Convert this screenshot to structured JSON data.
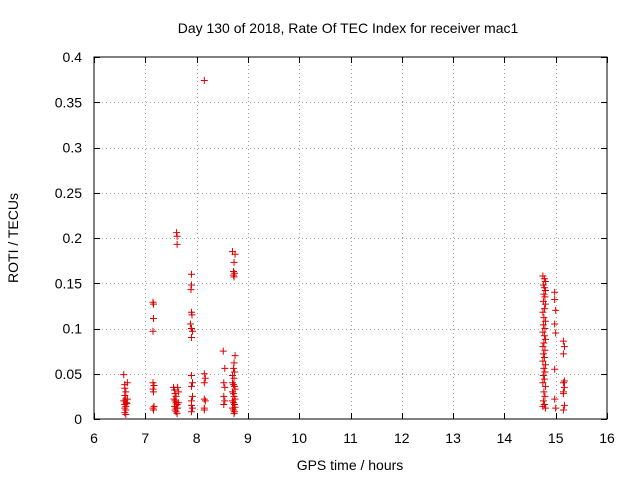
{
  "chart_data": {
    "type": "scatter",
    "title": "Day 130 of 2018, Rate Of TEC Index for receiver mac1",
    "xlabel": "GPS time / hours",
    "ylabel": "ROTI / TECUs",
    "xlim": [
      6,
      16
    ],
    "ylim": [
      0,
      0.4
    ],
    "x_ticks": [
      6,
      7,
      8,
      9,
      10,
      11,
      12,
      13,
      14,
      15,
      16
    ],
    "x_tick_labels": [
      "6",
      "7",
      "8",
      "9",
      "10",
      "11",
      "12",
      "13",
      "14",
      "15",
      "16"
    ],
    "y_ticks": [
      0,
      0.05,
      0.1,
      0.15,
      0.2,
      0.25,
      0.3,
      0.35,
      0.4
    ],
    "y_tick_labels": [
      "0",
      "0.05",
      "0.1",
      "0.15",
      "0.2",
      "0.25",
      "0.3",
      "0.35",
      "0.4"
    ],
    "grid": true,
    "marker": "+",
    "color": "#dd0000",
    "series": [
      {
        "name": "ROTI",
        "points": [
          [
            6.58,
            0.049
          ],
          [
            6.6,
            0.038
          ],
          [
            6.6,
            0.034
          ],
          [
            6.62,
            0.03
          ],
          [
            6.6,
            0.026
          ],
          [
            6.62,
            0.022
          ],
          [
            6.6,
            0.02
          ],
          [
            6.63,
            0.018
          ],
          [
            6.6,
            0.016
          ],
          [
            6.62,
            0.014
          ],
          [
            6.6,
            0.012
          ],
          [
            6.62,
            0.01
          ],
          [
            6.6,
            0.007
          ],
          [
            6.62,
            0.005
          ],
          [
            6.65,
            0.04
          ],
          [
            6.65,
            0.022
          ],
          [
            6.58,
            0.02
          ],
          [
            6.64,
            0.017
          ],
          [
            7.15,
            0.129
          ],
          [
            7.16,
            0.127
          ],
          [
            7.16,
            0.111
          ],
          [
            7.15,
            0.097
          ],
          [
            7.15,
            0.04
          ],
          [
            7.17,
            0.037
          ],
          [
            7.15,
            0.033
          ],
          [
            7.16,
            0.03
          ],
          [
            7.17,
            0.014
          ],
          [
            7.15,
            0.012
          ],
          [
            7.16,
            0.01
          ],
          [
            7.55,
            0.035
          ],
          [
            7.57,
            0.032
          ],
          [
            7.58,
            0.028
          ],
          [
            7.6,
            0.025
          ],
          [
            7.56,
            0.022
          ],
          [
            7.58,
            0.02
          ],
          [
            7.6,
            0.018
          ],
          [
            7.62,
            0.016
          ],
          [
            7.57,
            0.014
          ],
          [
            7.6,
            0.012
          ],
          [
            7.58,
            0.01
          ],
          [
            7.6,
            0.008
          ],
          [
            7.62,
            0.006
          ],
          [
            7.63,
            0.035
          ],
          [
            7.65,
            0.03
          ],
          [
            7.65,
            0.018
          ],
          [
            7.63,
            0.012
          ],
          [
            7.61,
            0.206
          ],
          [
            7.62,
            0.202
          ],
          [
            7.62,
            0.193
          ],
          [
            7.9,
            0.16
          ],
          [
            7.9,
            0.148
          ],
          [
            7.89,
            0.143
          ],
          [
            7.9,
            0.118
          ],
          [
            7.91,
            0.115
          ],
          [
            7.88,
            0.105
          ],
          [
            7.9,
            0.1
          ],
          [
            7.92,
            0.097
          ],
          [
            7.9,
            0.09
          ],
          [
            7.9,
            0.048
          ],
          [
            7.92,
            0.04
          ],
          [
            7.9,
            0.036
          ],
          [
            7.92,
            0.025
          ],
          [
            7.9,
            0.02
          ],
          [
            7.9,
            0.015
          ],
          [
            7.92,
            0.012
          ],
          [
            7.9,
            0.008
          ],
          [
            8.15,
            0.374
          ],
          [
            8.15,
            0.05
          ],
          [
            8.17,
            0.045
          ],
          [
            8.15,
            0.04
          ],
          [
            8.15,
            0.022
          ],
          [
            8.17,
            0.02
          ],
          [
            8.15,
            0.012
          ],
          [
            8.15,
            0.01
          ],
          [
            8.52,
            0.075
          ],
          [
            8.55,
            0.056
          ],
          [
            8.53,
            0.04
          ],
          [
            8.55,
            0.035
          ],
          [
            8.53,
            0.025
          ],
          [
            8.55,
            0.02
          ],
          [
            8.53,
            0.016
          ],
          [
            8.7,
            0.185
          ],
          [
            8.75,
            0.182
          ],
          [
            8.73,
            0.173
          ],
          [
            8.72,
            0.163
          ],
          [
            8.74,
            0.161
          ],
          [
            8.72,
            0.159
          ],
          [
            8.73,
            0.157
          ],
          [
            8.75,
            0.07
          ],
          [
            8.73,
            0.062
          ],
          [
            8.72,
            0.056
          ],
          [
            8.74,
            0.052
          ],
          [
            8.7,
            0.048
          ],
          [
            8.73,
            0.045
          ],
          [
            8.7,
            0.04
          ],
          [
            8.72,
            0.038
          ],
          [
            8.74,
            0.036
          ],
          [
            8.75,
            0.033
          ],
          [
            8.7,
            0.03
          ],
          [
            8.72,
            0.028
          ],
          [
            8.73,
            0.025
          ],
          [
            8.75,
            0.022
          ],
          [
            8.7,
            0.02
          ],
          [
            8.72,
            0.018
          ],
          [
            8.74,
            0.016
          ],
          [
            8.75,
            0.013
          ],
          [
            8.7,
            0.012
          ],
          [
            8.72,
            0.01
          ],
          [
            8.74,
            0.008
          ],
          [
            8.73,
            0.006
          ],
          [
            14.75,
            0.158
          ],
          [
            14.78,
            0.155
          ],
          [
            14.8,
            0.152
          ],
          [
            14.76,
            0.148
          ],
          [
            14.78,
            0.145
          ],
          [
            14.8,
            0.142
          ],
          [
            14.77,
            0.138
          ],
          [
            14.79,
            0.135
          ],
          [
            14.76,
            0.13
          ],
          [
            14.8,
            0.127
          ],
          [
            14.78,
            0.122
          ],
          [
            14.75,
            0.118
          ],
          [
            14.77,
            0.112
          ],
          [
            14.8,
            0.108
          ],
          [
            14.76,
            0.104
          ],
          [
            14.79,
            0.1
          ],
          [
            14.75,
            0.096
          ],
          [
            14.78,
            0.092
          ],
          [
            14.8,
            0.088
          ],
          [
            14.77,
            0.084
          ],
          [
            14.75,
            0.08
          ],
          [
            14.79,
            0.076
          ],
          [
            14.76,
            0.072
          ],
          [
            14.78,
            0.068
          ],
          [
            14.75,
            0.064
          ],
          [
            14.8,
            0.06
          ],
          [
            14.77,
            0.056
          ],
          [
            14.79,
            0.052
          ],
          [
            14.76,
            0.048
          ],
          [
            14.78,
            0.044
          ],
          [
            14.75,
            0.04
          ],
          [
            14.8,
            0.036
          ],
          [
            14.77,
            0.03
          ],
          [
            14.79,
            0.025
          ],
          [
            14.76,
            0.02
          ],
          [
            14.78,
            0.016
          ],
          [
            14.75,
            0.014
          ],
          [
            14.8,
            0.012
          ],
          [
            14.98,
            0.14
          ],
          [
            14.98,
            0.132
          ],
          [
            15.0,
            0.12
          ],
          [
            14.98,
            0.105
          ],
          [
            15.0,
            0.095
          ],
          [
            14.98,
            0.055
          ],
          [
            14.98,
            0.022
          ],
          [
            15.0,
            0.012
          ],
          [
            15.15,
            0.086
          ],
          [
            15.17,
            0.08
          ],
          [
            15.15,
            0.072
          ],
          [
            15.17,
            0.042
          ],
          [
            15.15,
            0.04
          ],
          [
            15.17,
            0.035
          ],
          [
            15.15,
            0.03
          ],
          [
            15.15,
            0.028
          ],
          [
            15.17,
            0.015
          ],
          [
            15.15,
            0.01
          ]
        ]
      }
    ]
  }
}
